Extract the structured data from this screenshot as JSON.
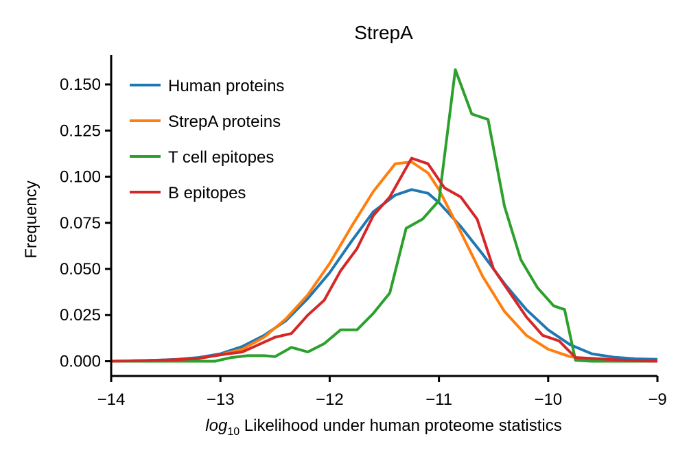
{
  "chart_data": {
    "type": "line",
    "title": "StrepA",
    "xlabel_prefix": "log",
    "xlabel_subscript": "10",
    "xlabel_rest": " Likelihood under human proteome statistics",
    "ylabel": "Frequency",
    "xlim": [
      -14,
      -9
    ],
    "ylim": [
      -0.008,
      0.166
    ],
    "x_ticks": [
      -14,
      -13,
      -12,
      -11,
      -10,
      -9
    ],
    "x_tick_labels": [
      "−14",
      "−13",
      "−12",
      "−11",
      "−10",
      "−9"
    ],
    "y_ticks": [
      0.0,
      0.025,
      0.05,
      0.075,
      0.1,
      0.125,
      0.15
    ],
    "y_tick_labels": [
      "0.000",
      "0.025",
      "0.050",
      "0.075",
      "0.100",
      "0.125",
      "0.150"
    ],
    "grid": false,
    "legend_position": "top-left",
    "series": [
      {
        "name": "Human proteins",
        "color": "#1f77b4",
        "x": [
          -14,
          -13.8,
          -13.6,
          -13.4,
          -13.2,
          -13.0,
          -12.8,
          -12.6,
          -12.4,
          -12.2,
          -12.0,
          -11.8,
          -11.6,
          -11.4,
          -11.25,
          -11.1,
          -11.0,
          -10.8,
          -10.6,
          -10.4,
          -10.2,
          -10.0,
          -9.8,
          -9.6,
          -9.4,
          -9.2,
          -9.0
        ],
        "y": [
          0.0,
          0.0002,
          0.0005,
          0.001,
          0.002,
          0.004,
          0.008,
          0.014,
          0.022,
          0.034,
          0.048,
          0.065,
          0.081,
          0.09,
          0.093,
          0.091,
          0.086,
          0.073,
          0.058,
          0.042,
          0.028,
          0.017,
          0.009,
          0.004,
          0.0022,
          0.0013,
          0.001
        ]
      },
      {
        "name": "StrepA proteins",
        "color": "#ff7f0e",
        "x": [
          -14,
          -13.8,
          -13.6,
          -13.4,
          -13.2,
          -13.0,
          -12.8,
          -12.6,
          -12.4,
          -12.2,
          -12.0,
          -11.8,
          -11.6,
          -11.4,
          -11.25,
          -11.1,
          -11.0,
          -10.8,
          -10.6,
          -10.4,
          -10.2,
          -10.0,
          -9.8,
          -9.6,
          -9.4,
          -9.2,
          -9.0
        ],
        "y": [
          0.0,
          0.0002,
          0.0004,
          0.0008,
          0.0015,
          0.0035,
          0.0065,
          0.013,
          0.023,
          0.036,
          0.053,
          0.073,
          0.092,
          0.107,
          0.108,
          0.102,
          0.093,
          0.07,
          0.046,
          0.027,
          0.014,
          0.0065,
          0.0025,
          0.0008,
          0.0003,
          0.0001,
          0.0
        ]
      },
      {
        "name": "T cell epitopes",
        "color": "#2ca02c",
        "x": [
          -14,
          -13.8,
          -13.6,
          -13.4,
          -13.2,
          -13.05,
          -12.9,
          -12.75,
          -12.6,
          -12.5,
          -12.35,
          -12.2,
          -12.05,
          -11.9,
          -11.75,
          -11.6,
          -11.45,
          -11.3,
          -11.15,
          -11.0,
          -10.85,
          -10.7,
          -10.55,
          -10.4,
          -10.25,
          -10.1,
          -9.95,
          -9.85,
          -9.75,
          -9.6,
          -9.4,
          -9.2,
          -9.0
        ],
        "y": [
          0.0,
          0.0,
          0.0,
          0.0,
          0.0,
          0.0,
          0.002,
          0.003,
          0.003,
          0.0025,
          0.0075,
          0.005,
          0.0095,
          0.017,
          0.017,
          0.026,
          0.037,
          0.072,
          0.077,
          0.087,
          0.158,
          0.134,
          0.131,
          0.084,
          0.055,
          0.04,
          0.03,
          0.028,
          0.0005,
          0.0,
          0.0,
          0.0,
          0.0
        ]
      },
      {
        "name": "B epitopes",
        "color": "#d62728",
        "x": [
          -14,
          -13.8,
          -13.6,
          -13.4,
          -13.2,
          -13.0,
          -12.8,
          -12.65,
          -12.5,
          -12.35,
          -12.2,
          -12.05,
          -11.9,
          -11.75,
          -11.6,
          -11.45,
          -11.25,
          -11.1,
          -10.95,
          -10.8,
          -10.65,
          -10.5,
          -10.35,
          -10.2,
          -10.05,
          -9.9,
          -9.75,
          -9.6,
          -9.4,
          -9.2,
          -9.0
        ],
        "y": [
          0.0,
          0.0002,
          0.0005,
          0.0008,
          0.0015,
          0.0035,
          0.005,
          0.009,
          0.013,
          0.015,
          0.025,
          0.033,
          0.049,
          0.061,
          0.079,
          0.089,
          0.11,
          0.107,
          0.094,
          0.089,
          0.077,
          0.05,
          0.037,
          0.024,
          0.014,
          0.011,
          0.002,
          0.0015,
          0.0008,
          0.0002,
          0.0
        ]
      }
    ]
  }
}
